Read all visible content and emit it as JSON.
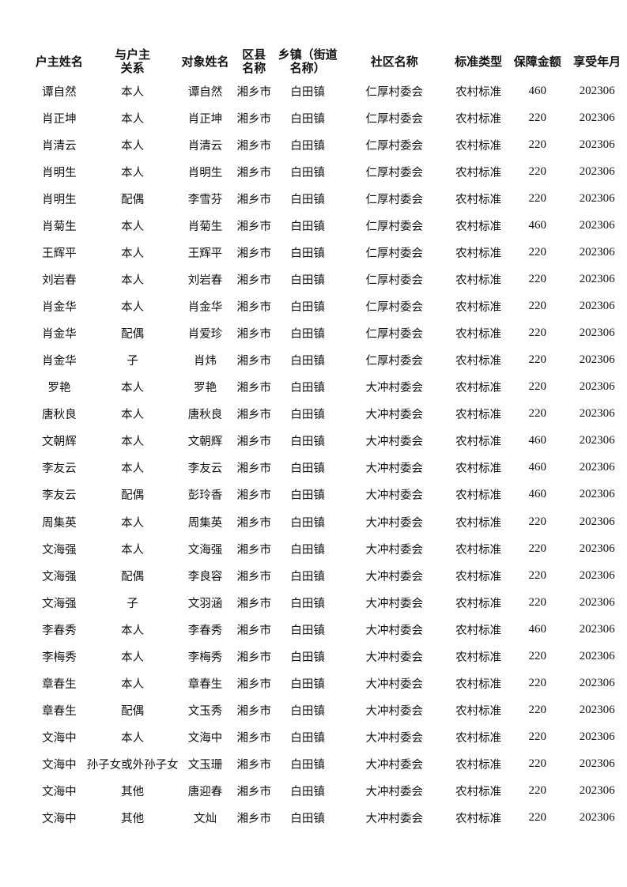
{
  "headers": [
    "户主姓名",
    "与户主关系",
    "对象姓名",
    "区县名称",
    "乡镇（街道名称）",
    "社区名称",
    "标准类型",
    "保障金额",
    "享受年月"
  ],
  "rows": [
    [
      "谭自然",
      "本人",
      "谭自然",
      "湘乡市",
      "白田镇",
      "仁厚村委会",
      "农村标准",
      "460",
      "202306"
    ],
    [
      "肖正坤",
      "本人",
      "肖正坤",
      "湘乡市",
      "白田镇",
      "仁厚村委会",
      "农村标准",
      "220",
      "202306"
    ],
    [
      "肖清云",
      "本人",
      "肖清云",
      "湘乡市",
      "白田镇",
      "仁厚村委会",
      "农村标准",
      "220",
      "202306"
    ],
    [
      "肖明生",
      "本人",
      "肖明生",
      "湘乡市",
      "白田镇",
      "仁厚村委会",
      "农村标准",
      "220",
      "202306"
    ],
    [
      "肖明生",
      "配偶",
      "李雪芬",
      "湘乡市",
      "白田镇",
      "仁厚村委会",
      "农村标准",
      "220",
      "202306"
    ],
    [
      "肖菊生",
      "本人",
      "肖菊生",
      "湘乡市",
      "白田镇",
      "仁厚村委会",
      "农村标准",
      "460",
      "202306"
    ],
    [
      "王辉平",
      "本人",
      "王辉平",
      "湘乡市",
      "白田镇",
      "仁厚村委会",
      "农村标准",
      "220",
      "202306"
    ],
    [
      "刘岩春",
      "本人",
      "刘岩春",
      "湘乡市",
      "白田镇",
      "仁厚村委会",
      "农村标准",
      "220",
      "202306"
    ],
    [
      "肖金华",
      "本人",
      "肖金华",
      "湘乡市",
      "白田镇",
      "仁厚村委会",
      "农村标准",
      "220",
      "202306"
    ],
    [
      "肖金华",
      "配偶",
      "肖爱珍",
      "湘乡市",
      "白田镇",
      "仁厚村委会",
      "农村标准",
      "220",
      "202306"
    ],
    [
      "肖金华",
      "子",
      "肖炜",
      "湘乡市",
      "白田镇",
      "仁厚村委会",
      "农村标准",
      "220",
      "202306"
    ],
    [
      "罗艳",
      "本人",
      "罗艳",
      "湘乡市",
      "白田镇",
      "大冲村委会",
      "农村标准",
      "220",
      "202306"
    ],
    [
      "唐秋良",
      "本人",
      "唐秋良",
      "湘乡市",
      "白田镇",
      "大冲村委会",
      "农村标准",
      "220",
      "202306"
    ],
    [
      "文朝辉",
      "本人",
      "文朝辉",
      "湘乡市",
      "白田镇",
      "大冲村委会",
      "农村标准",
      "460",
      "202306"
    ],
    [
      "李友云",
      "本人",
      "李友云",
      "湘乡市",
      "白田镇",
      "大冲村委会",
      "农村标准",
      "460",
      "202306"
    ],
    [
      "李友云",
      "配偶",
      "彭玲香",
      "湘乡市",
      "白田镇",
      "大冲村委会",
      "农村标准",
      "460",
      "202306"
    ],
    [
      "周集英",
      "本人",
      "周集英",
      "湘乡市",
      "白田镇",
      "大冲村委会",
      "农村标准",
      "220",
      "202306"
    ],
    [
      "文海强",
      "本人",
      "文海强",
      "湘乡市",
      "白田镇",
      "大冲村委会",
      "农村标准",
      "220",
      "202306"
    ],
    [
      "文海强",
      "配偶",
      "李良容",
      "湘乡市",
      "白田镇",
      "大冲村委会",
      "农村标准",
      "220",
      "202306"
    ],
    [
      "文海强",
      "子",
      "文羽涵",
      "湘乡市",
      "白田镇",
      "大冲村委会",
      "农村标准",
      "220",
      "202306"
    ],
    [
      "李春秀",
      "本人",
      "李春秀",
      "湘乡市",
      "白田镇",
      "大冲村委会",
      "农村标准",
      "460",
      "202306"
    ],
    [
      "李梅秀",
      "本人",
      "李梅秀",
      "湘乡市",
      "白田镇",
      "大冲村委会",
      "农村标准",
      "220",
      "202306"
    ],
    [
      "章春生",
      "本人",
      "章春生",
      "湘乡市",
      "白田镇",
      "大冲村委会",
      "农村标准",
      "220",
      "202306"
    ],
    [
      "章春生",
      "配偶",
      "文玉秀",
      "湘乡市",
      "白田镇",
      "大冲村委会",
      "农村标准",
      "220",
      "202306"
    ],
    [
      "文海中",
      "本人",
      "文海中",
      "湘乡市",
      "白田镇",
      "大冲村委会",
      "农村标准",
      "220",
      "202306"
    ],
    [
      "文海中",
      "孙子女或外孙子女",
      "文玉珊",
      "湘乡市",
      "白田镇",
      "大冲村委会",
      "农村标准",
      "220",
      "202306"
    ],
    [
      "文海中",
      "其他",
      "唐迎春",
      "湘乡市",
      "白田镇",
      "大冲村委会",
      "农村标准",
      "220",
      "202306"
    ],
    [
      "文海中",
      "其他",
      "文灿",
      "湘乡市",
      "白田镇",
      "大冲村委会",
      "农村标准",
      "220",
      "202306"
    ]
  ]
}
